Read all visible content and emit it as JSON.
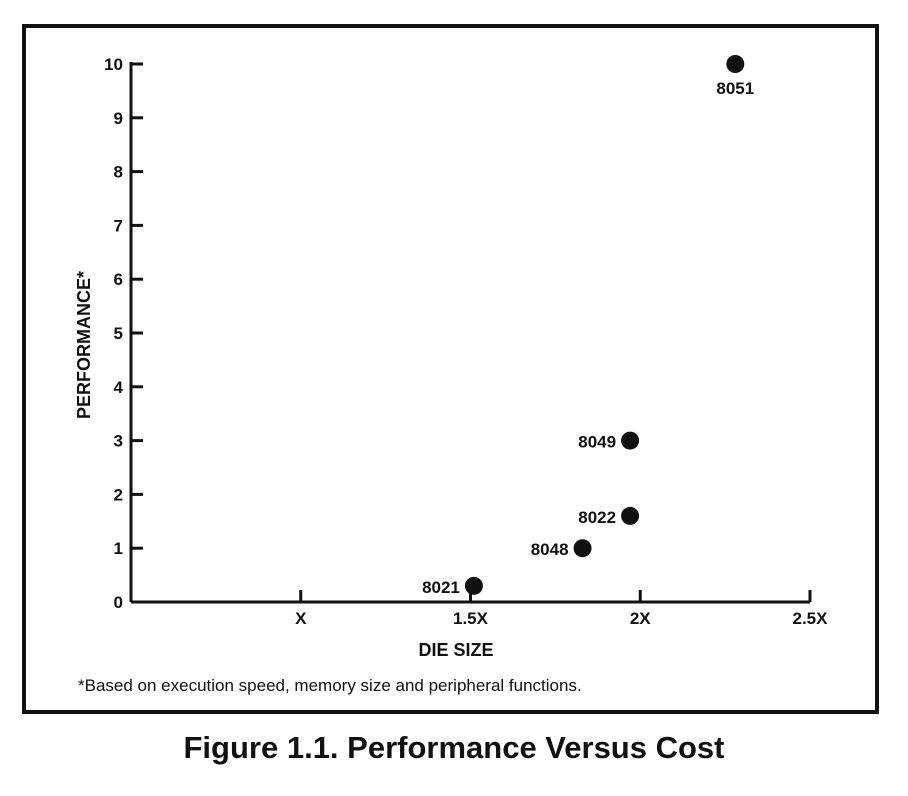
{
  "footnote": "*Based on execution speed, memory size and peripheral functions.",
  "caption": "Figure 1.1.  Performance Versus Cost",
  "chart_data": {
    "type": "scatter",
    "title": "",
    "xlabel": "DIE SIZE",
    "ylabel": "PERFORMANCE*",
    "x_ticks": [
      {
        "value": 1.0,
        "label": "X"
      },
      {
        "value": 1.5,
        "label": "1.5X"
      },
      {
        "value": 2.0,
        "label": "2X"
      },
      {
        "value": 2.5,
        "label": "2.5X"
      }
    ],
    "y_ticks": [
      0,
      1,
      2,
      3,
      4,
      5,
      6,
      7,
      8,
      9,
      10
    ],
    "xlim": [
      0.5,
      2.5
    ],
    "ylim": [
      0,
      10
    ],
    "grid": false,
    "points": [
      {
        "label": "8021",
        "x": 1.51,
        "y": 0.3,
        "label_pos": "left"
      },
      {
        "label": "8048",
        "x": 1.83,
        "y": 1.0,
        "label_pos": "left"
      },
      {
        "label": "8022",
        "x": 1.97,
        "y": 1.6,
        "label_pos": "left"
      },
      {
        "label": "8049",
        "x": 1.97,
        "y": 3.0,
        "label_pos": "left"
      },
      {
        "label": "8051",
        "x": 2.28,
        "y": 10.0,
        "label_pos": "below"
      }
    ]
  }
}
